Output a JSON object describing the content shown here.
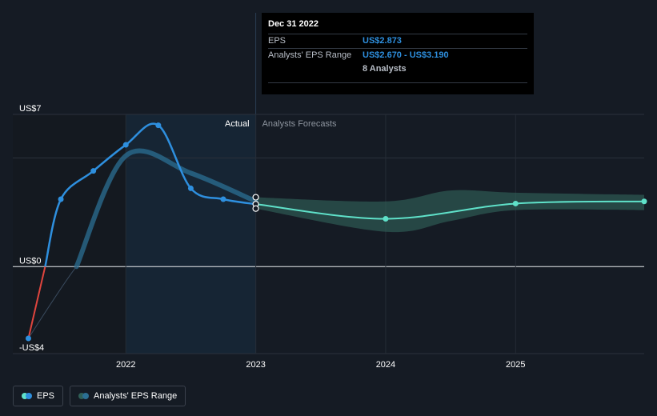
{
  "chart_data": {
    "type": "line",
    "y_axis": {
      "min": -4,
      "max": 7,
      "tick_labels": [
        {
          "value": 7,
          "label": "US$7"
        },
        {
          "value": 0,
          "label": "US$0"
        },
        {
          "value": -4,
          "label": "-US$4"
        }
      ]
    },
    "x_axis": {
      "min": 2021.13,
      "max": 2025.99,
      "tick_labels": [
        {
          "value": 2022,
          "label": "2022"
        },
        {
          "value": 2023,
          "label": "2023"
        },
        {
          "value": 2024,
          "label": "2024"
        },
        {
          "value": 2025,
          "label": "2025"
        }
      ]
    },
    "regions": {
      "split_x": 2023,
      "actual_label": "Actual",
      "forecast_label": "Analysts Forecasts"
    },
    "series": [
      {
        "name": "EPS",
        "color": "#2e8fde",
        "negative_color": "#e0453e",
        "points": [
          {
            "x": 2021.25,
            "y": -3.3
          },
          {
            "x": 2021.5,
            "y": 3.1
          },
          {
            "x": 2021.75,
            "y": 4.4
          },
          {
            "x": 2022.0,
            "y": 5.6
          },
          {
            "x": 2022.25,
            "y": 6.5
          },
          {
            "x": 2022.5,
            "y": 3.6
          },
          {
            "x": 2022.75,
            "y": 3.1
          },
          {
            "x": 2023.0,
            "y": 2.873
          }
        ]
      },
      {
        "name": "Analysts' EPS Range",
        "color": "#2b6f93",
        "line_points": [
          {
            "x": 2021.62,
            "y": 0.0
          },
          {
            "x": 2022.0,
            "y": 5.1
          },
          {
            "x": 2022.5,
            "y": 4.3
          },
          {
            "x": 2023.0,
            "y": 3.0
          }
        ],
        "forecast_mean": [
          {
            "x": 2023.0,
            "y": 2.873
          },
          {
            "x": 2024.0,
            "y": 2.2
          },
          {
            "x": 2025.0,
            "y": 2.9
          },
          {
            "x": 2025.99,
            "y": 3.0
          }
        ],
        "forecast_high": [
          {
            "x": 2023.0,
            "y": 3.19
          },
          {
            "x": 2024.0,
            "y": 3.0
          },
          {
            "x": 2024.5,
            "y": 3.5
          },
          {
            "x": 2025.0,
            "y": 3.4
          },
          {
            "x": 2025.99,
            "y": 3.3
          }
        ],
        "forecast_low": [
          {
            "x": 2023.0,
            "y": 2.67
          },
          {
            "x": 2024.0,
            "y": 1.6
          },
          {
            "x": 2024.5,
            "y": 2.1
          },
          {
            "x": 2025.0,
            "y": 2.6
          },
          {
            "x": 2025.99,
            "y": 2.6
          }
        ],
        "forecast_color": "#5fe1c9",
        "band_color": "#2f5f57"
      }
    ]
  },
  "tooltip": {
    "date": "Dec 31 2022",
    "eps_label": "EPS",
    "eps_value": "US$2.873",
    "range_label": "Analysts' EPS Range",
    "range_value": "US$2.670 - US$3.190",
    "analysts": "8 Analysts"
  },
  "legend": {
    "eps_label": "EPS",
    "range_label": "Analysts' EPS Range"
  },
  "colors": {
    "background": "#151b24",
    "actual_shade": "#162534",
    "eps": "#2e8fde",
    "forecast": "#5fe1c9"
  }
}
